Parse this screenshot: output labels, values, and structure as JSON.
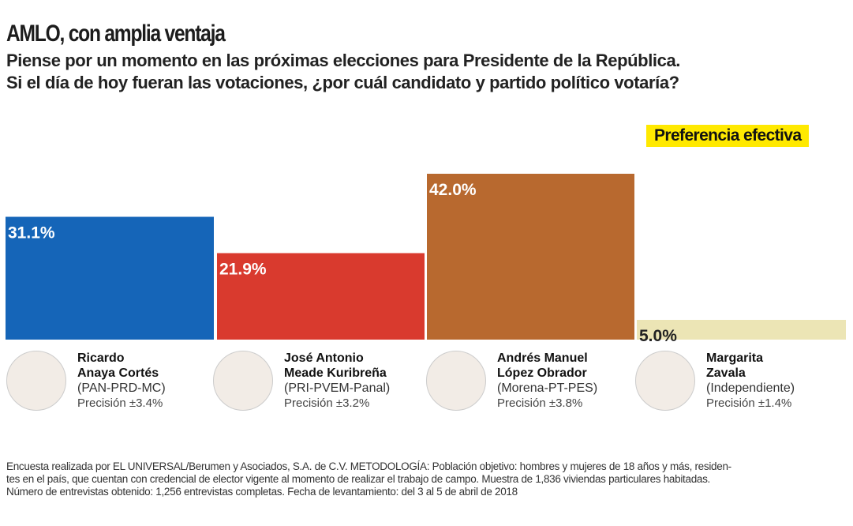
{
  "title": "AMLO, con amplia ventaja",
  "subtitle_lines": [
    "Piense por un momento en las próximas elecciones para Presidente de la República.",
    "Si el día de hoy fueran las votaciones, ¿por cuál candidato y partido político votaría?"
  ],
  "legend_label": "Preferencia efectiva",
  "legend_color": "#ffe900",
  "chart_data": {
    "type": "bar",
    "title": "AMLO, con amplia ventaja",
    "categories": [
      "Ricardo Anaya Cortés",
      "José Antonio Meade Kuribreña",
      "Andrés Manuel López Obrador",
      "Margarita Zavala"
    ],
    "values": [
      31.1,
      21.9,
      42.0,
      5.0
    ],
    "value_labels": [
      "31.1%",
      "21.9%",
      "42.0%",
      "5.0%"
    ],
    "colors": [
      "#1565b8",
      "#d93a2e",
      "#b8692f",
      "#ece5b5"
    ],
    "label_colors": [
      "#ffffff",
      "#ffffff",
      "#ffffff",
      "#222222"
    ],
    "series": [
      {
        "name": "Preferencia efectiva",
        "values": [
          31.1,
          21.9,
          42.0,
          5.0
        ]
      }
    ],
    "ylim": [
      0,
      42
    ],
    "grid": false,
    "legend": "top-right"
  },
  "candidates": [
    {
      "name1": "Ricardo",
      "name2": "Anaya Cortés",
      "party": "(PAN-PRD-MC)",
      "precision": "Precisión ±3.4%"
    },
    {
      "name1": "José Antonio",
      "name2": "Meade Kuribreña",
      "party": "(PRI-PVEM-Panal)",
      "precision": "Precisión ±3.2%"
    },
    {
      "name1": "Andrés Manuel",
      "name2": "López Obrador",
      "party": "(Morena-PT-PES)",
      "precision": "Precisión ±3.8%"
    },
    {
      "name1": "Margarita",
      "name2": "Zavala",
      "party": "(Independiente)",
      "precision": "Precisión ±1.4%"
    }
  ],
  "footnote_lines": [
    "Encuesta realizada por EL UNIVERSAL/Berumen y Asociados, S.A. de C.V. METODOLOGÍA: Población objetivo: hombres y mujeres de 18 años y más, residen-",
    "tes en el país, que cuentan con credencial de elector vigente al momento de realizar el trabajo de campo. Muestra de 1,836 viviendas particulares habitadas.",
    "Número de entrevistas obtenido: 1,256  entrevistas completas. Fecha de levantamiento: del 3 al 5 de abril de 2018"
  ]
}
